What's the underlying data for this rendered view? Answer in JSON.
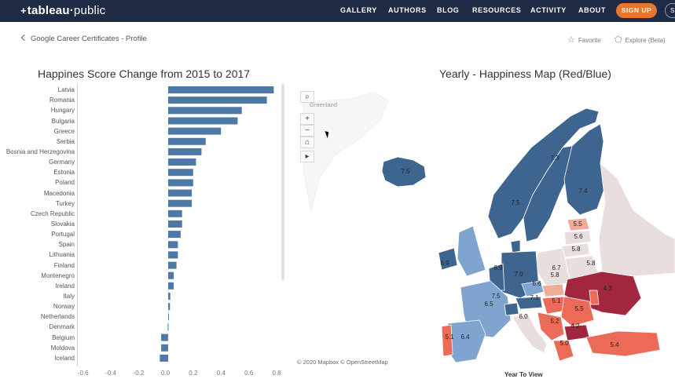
{
  "nav": {
    "logo_prefix": "+",
    "logo_main": "tableau",
    "logo_dot": "·",
    "logo_public": "public",
    "items": [
      "GALLERY",
      "AUTHORS",
      "BLOG",
      "RESOURCES",
      "ACTIVITY",
      "ABOUT"
    ],
    "signup": "SIGN UP",
    "search_letter": "S"
  },
  "subheader": {
    "back_label": "Google Career Certificates - Profile",
    "favorite": "Favorite",
    "explore": "Explore (Beta)"
  },
  "chart_data": {
    "type": "bar",
    "orientation": "horizontal",
    "title": "Happines Score Change from 2015 to 2017",
    "categories": [
      "Latvia",
      "Romania",
      "Hungary",
      "Bulgaria",
      "Greece",
      "Serbia",
      "Bosnia and Herzegovina",
      "Germany",
      "Estonia",
      "Poland",
      "Macedonia",
      "Turkey",
      "Czech Republic",
      "Slovakia",
      "Portugal",
      "Spain",
      "Lithuania",
      "Finland",
      "Montenegro",
      "Ireland",
      "Italy",
      "Norway",
      "Netherlands",
      "Denmark",
      "Belgium",
      "Moldova",
      "Iceland"
    ],
    "values": [
      0.76,
      0.71,
      0.53,
      0.5,
      0.38,
      0.27,
      0.24,
      0.2,
      0.18,
      0.18,
      0.17,
      0.17,
      0.1,
      0.1,
      0.09,
      0.07,
      0.07,
      0.06,
      0.04,
      0.04,
      0.015,
      0.013,
      0.005,
      -0.003,
      -0.05,
      -0.05,
      -0.06
    ],
    "xlim": [
      -0.65,
      0.82
    ],
    "ticks": [
      "-0.6",
      "-0.4",
      "-0.2",
      "0.0",
      "0.2",
      "0.4",
      "0.6",
      "0.8"
    ],
    "tick_values": [
      -0.6,
      -0.4,
      -0.2,
      0.0,
      0.2,
      0.4,
      0.6,
      0.8
    ],
    "bar_color": "#4e79a7",
    "grid": false
  },
  "map": {
    "title": "Yearly - Happiness Map (Red/Blue)",
    "greenland_label": "Greenland",
    "controls": [
      "⌕",
      "+",
      "−",
      "⌂",
      "▸"
    ],
    "attribution": "© 2020 Mapbox © OpenStreetMap",
    "filter_label": "Year To View",
    "scores": [
      "7.5",
      "7.3",
      "7.5",
      "7.4",
      "5.5",
      "5.6",
      "5.8",
      "5.8",
      "6.7",
      "6.9",
      "7.0",
      "5.8",
      "6.6",
      "7.5",
      "7.1",
      "5.1",
      "4.3",
      "6.5",
      "5.5",
      "6.0",
      "5.2",
      "4.2",
      "5.0",
      "6.4",
      "5.1",
      "5.4",
      "6.9"
    ],
    "colors": {
      "dark_blue": "#3e6590",
      "mid_blue": "#7ea4cf",
      "light_blue": "#c7d7ea",
      "neutral": "#e8dedc",
      "light_red": "#f0ab9a",
      "red": "#ec6a58",
      "dark_red": "#a3263f"
    }
  }
}
